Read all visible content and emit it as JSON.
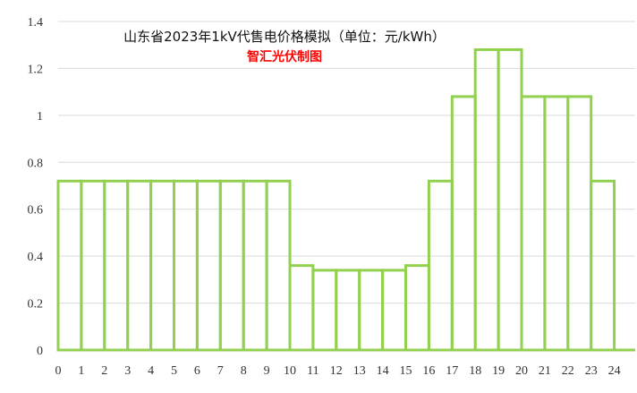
{
  "chart_data": {
    "type": "bar",
    "title": "山东省2023年1kV代售电价格模拟（单位：元/kWh）",
    "subtitle": "智汇光伏制图",
    "xlabel": "",
    "ylabel": "",
    "ylim": [
      0,
      1.4
    ],
    "yticks": [
      "0",
      "0.2",
      "0.4",
      "0.6",
      "0.8",
      "1",
      "1.2",
      "1.4"
    ],
    "xticks": [
      "0",
      "1",
      "2",
      "3",
      "4",
      "5",
      "6",
      "7",
      "8",
      "9",
      "10",
      "11",
      "12",
      "13",
      "14",
      "15",
      "16",
      "17",
      "18",
      "19",
      "20",
      "21",
      "22",
      "23",
      "24"
    ],
    "categories": [
      "0",
      "1",
      "2",
      "3",
      "4",
      "5",
      "6",
      "7",
      "8",
      "9",
      "10",
      "11",
      "12",
      "13",
      "14",
      "15",
      "16",
      "17",
      "18",
      "19",
      "20",
      "21",
      "22",
      "23"
    ],
    "values": [
      0.72,
      0.72,
      0.72,
      0.72,
      0.72,
      0.72,
      0.72,
      0.72,
      0.72,
      0.72,
      0.36,
      0.34,
      0.34,
      0.34,
      0.34,
      0.36,
      0.72,
      1.08,
      1.28,
      1.28,
      1.08,
      1.08,
      1.08,
      0.72
    ],
    "grid": true,
    "legend": "none",
    "colors": {
      "bar_outline": "#92d050",
      "subtitle": "#ff0000",
      "gridline": "#d9d9d9",
      "axis": "#92d050"
    }
  }
}
